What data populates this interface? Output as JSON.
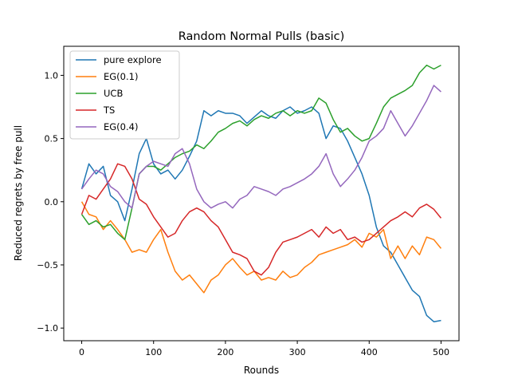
{
  "chart_data": {
    "type": "line",
    "title": "Random Normal Pulls (basic)",
    "xlabel": "Rounds",
    "ylabel": "Reduced regrets by free pull",
    "xlim": [
      -25,
      525
    ],
    "ylim": [
      -1.1,
      1.23
    ],
    "xticks": [
      0,
      100,
      200,
      300,
      400,
      500
    ],
    "xtick_labels": [
      "0",
      "100",
      "200",
      "300",
      "400",
      "500"
    ],
    "yticks": [
      -1.0,
      -0.5,
      0.0,
      0.5,
      1.0
    ],
    "ytick_labels": [
      "−1.0",
      "−0.5",
      "0.0",
      "0.5",
      "1.0"
    ],
    "grid": false,
    "legend_position": "top-left",
    "series": [
      {
        "name": "pure explore",
        "color": "#1f77b4",
        "x": [
          0,
          10,
          20,
          30,
          40,
          50,
          60,
          70,
          80,
          90,
          100,
          110,
          120,
          130,
          140,
          150,
          160,
          170,
          180,
          190,
          200,
          210,
          220,
          230,
          240,
          250,
          260,
          270,
          280,
          290,
          300,
          310,
          320,
          330,
          340,
          350,
          360,
          370,
          380,
          390,
          400,
          410,
          420,
          430,
          440,
          450,
          460,
          470,
          480,
          490,
          500
        ],
        "y": [
          0.1,
          0.3,
          0.22,
          0.28,
          0.05,
          0.0,
          -0.15,
          0.1,
          0.38,
          0.5,
          0.3,
          0.22,
          0.25,
          0.18,
          0.25,
          0.36,
          0.48,
          0.72,
          0.68,
          0.72,
          0.7,
          0.7,
          0.68,
          0.62,
          0.67,
          0.72,
          0.68,
          0.66,
          0.72,
          0.75,
          0.7,
          0.72,
          0.75,
          0.7,
          0.5,
          0.6,
          0.58,
          0.48,
          0.35,
          0.22,
          0.05,
          -0.2,
          -0.35,
          -0.4,
          -0.5,
          -0.6,
          -0.7,
          -0.75,
          -0.9,
          -0.95,
          -0.94
        ]
      },
      {
        "name": "EG(0.1)",
        "color": "#ff7f0e",
        "x": [
          0,
          10,
          20,
          30,
          40,
          50,
          60,
          70,
          80,
          90,
          100,
          110,
          120,
          130,
          140,
          150,
          160,
          170,
          180,
          190,
          200,
          210,
          220,
          230,
          240,
          250,
          260,
          270,
          280,
          290,
          300,
          310,
          320,
          330,
          340,
          350,
          360,
          370,
          380,
          390,
          400,
          410,
          420,
          430,
          440,
          450,
          460,
          470,
          480,
          490,
          500
        ],
        "y": [
          0.0,
          -0.1,
          -0.12,
          -0.22,
          -0.15,
          -0.22,
          -0.3,
          -0.4,
          -0.38,
          -0.4,
          -0.3,
          -0.22,
          -0.4,
          -0.55,
          -0.62,
          -0.58,
          -0.65,
          -0.72,
          -0.62,
          -0.58,
          -0.5,
          -0.45,
          -0.52,
          -0.58,
          -0.55,
          -0.62,
          -0.6,
          -0.62,
          -0.55,
          -0.6,
          -0.58,
          -0.52,
          -0.48,
          -0.42,
          -0.4,
          -0.38,
          -0.36,
          -0.34,
          -0.3,
          -0.36,
          -0.25,
          -0.28,
          -0.22,
          -0.45,
          -0.35,
          -0.45,
          -0.35,
          -0.42,
          -0.28,
          -0.3,
          -0.37
        ]
      },
      {
        "name": "UCB",
        "color": "#2ca02c",
        "x": [
          0,
          10,
          20,
          30,
          40,
          50,
          60,
          70,
          80,
          90,
          100,
          110,
          120,
          130,
          140,
          150,
          160,
          170,
          180,
          190,
          200,
          210,
          220,
          230,
          240,
          250,
          260,
          270,
          280,
          290,
          300,
          310,
          320,
          330,
          340,
          350,
          360,
          370,
          380,
          390,
          400,
          410,
          420,
          430,
          440,
          450,
          460,
          470,
          480,
          490,
          500
        ],
        "y": [
          -0.1,
          -0.18,
          -0.15,
          -0.2,
          -0.18,
          -0.25,
          -0.3,
          -0.05,
          0.22,
          0.28,
          0.28,
          0.25,
          0.3,
          0.35,
          0.38,
          0.4,
          0.45,
          0.42,
          0.48,
          0.55,
          0.58,
          0.62,
          0.64,
          0.6,
          0.65,
          0.68,
          0.66,
          0.7,
          0.72,
          0.68,
          0.72,
          0.7,
          0.72,
          0.82,
          0.78,
          0.65,
          0.55,
          0.58,
          0.52,
          0.48,
          0.5,
          0.62,
          0.75,
          0.82,
          0.85,
          0.88,
          0.92,
          1.02,
          1.08,
          1.05,
          1.08
        ]
      },
      {
        "name": "TS",
        "color": "#d62728",
        "x": [
          0,
          10,
          20,
          30,
          40,
          50,
          60,
          70,
          80,
          90,
          100,
          110,
          120,
          130,
          140,
          150,
          160,
          170,
          180,
          190,
          200,
          210,
          220,
          230,
          240,
          250,
          260,
          270,
          280,
          290,
          300,
          310,
          320,
          330,
          340,
          350,
          360,
          370,
          380,
          390,
          400,
          410,
          420,
          430,
          440,
          450,
          460,
          470,
          480,
          490,
          500
        ],
        "y": [
          -0.1,
          0.05,
          0.02,
          0.1,
          0.18,
          0.3,
          0.28,
          0.18,
          0.02,
          -0.02,
          -0.12,
          -0.2,
          -0.28,
          -0.25,
          -0.15,
          -0.08,
          -0.05,
          -0.08,
          -0.15,
          -0.2,
          -0.3,
          -0.4,
          -0.42,
          -0.45,
          -0.55,
          -0.58,
          -0.52,
          -0.4,
          -0.32,
          -0.3,
          -0.28,
          -0.25,
          -0.22,
          -0.28,
          -0.2,
          -0.25,
          -0.22,
          -0.3,
          -0.28,
          -0.32,
          -0.3,
          -0.25,
          -0.2,
          -0.15,
          -0.12,
          -0.08,
          -0.12,
          -0.05,
          -0.02,
          -0.06,
          -0.13
        ]
      },
      {
        "name": "EG(0.4)",
        "color": "#9467bd",
        "x": [
          0,
          10,
          20,
          30,
          40,
          50,
          60,
          70,
          80,
          90,
          100,
          110,
          120,
          130,
          140,
          150,
          160,
          170,
          180,
          190,
          200,
          210,
          220,
          230,
          240,
          250,
          260,
          270,
          280,
          290,
          300,
          310,
          320,
          330,
          340,
          350,
          360,
          370,
          380,
          390,
          400,
          410,
          420,
          430,
          440,
          450,
          460,
          470,
          480,
          490,
          500
        ],
        "y": [
          0.1,
          0.18,
          0.25,
          0.22,
          0.12,
          0.08,
          0.0,
          -0.05,
          0.22,
          0.28,
          0.32,
          0.3,
          0.28,
          0.38,
          0.42,
          0.3,
          0.1,
          0.0,
          -0.05,
          -0.02,
          0.0,
          -0.05,
          0.02,
          0.05,
          0.12,
          0.1,
          0.08,
          0.05,
          0.1,
          0.12,
          0.15,
          0.18,
          0.22,
          0.28,
          0.38,
          0.22,
          0.12,
          0.18,
          0.25,
          0.35,
          0.48,
          0.52,
          0.58,
          0.72,
          0.62,
          0.52,
          0.6,
          0.7,
          0.8,
          0.92,
          0.87
        ]
      }
    ]
  }
}
